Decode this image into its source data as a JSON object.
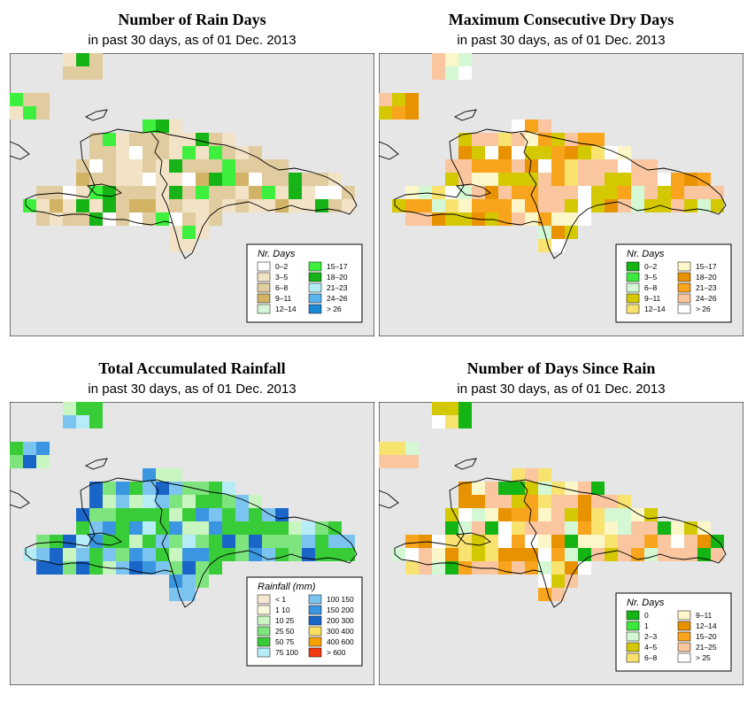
{
  "panels": [
    {
      "id": "rain-days",
      "title": "Number of Rain Days",
      "subtitle": "in past 30 days, as of  01 Dec. 2013",
      "legend": {
        "title": "Nr. Days",
        "items": [
          {
            "label": "0–2",
            "color": "#ffffff"
          },
          {
            "label": "3–5",
            "color": "#f3e3c6"
          },
          {
            "label": "6–8",
            "color": "#e0cc9e"
          },
          {
            "label": "9–11",
            "color": "#d2b264"
          },
          {
            "label": "12–14",
            "color": "#d6f7d6"
          },
          {
            "label": "15–17",
            "color": "#3ef03e"
          },
          {
            "label": "18–20",
            "color": "#16b416"
          },
          {
            "label": "21–23",
            "color": "#b4ecf6"
          },
          {
            "label": "24–26",
            "color": "#58b4ec"
          },
          {
            "label": "> 26",
            "color": "#1a8ad6"
          }
        ]
      }
    },
    {
      "id": "max-dry-days",
      "title": "Maximum Consecutive Dry Days",
      "subtitle": "in past 30 days, as of  01 Dec. 2013",
      "legend": {
        "title": "Nr. Days",
        "items": [
          {
            "label": "0–2",
            "color": "#14b414"
          },
          {
            "label": "3–5",
            "color": "#3ee83e"
          },
          {
            "label": "6–8",
            "color": "#d4f8d4"
          },
          {
            "label": "9–11",
            "color": "#d4c800"
          },
          {
            "label": "12–14",
            "color": "#f8e270"
          },
          {
            "label": "15–17",
            "color": "#fcf7c8"
          },
          {
            "label": "18–20",
            "color": "#e89200"
          },
          {
            "label": "21–23",
            "color": "#f8a41c"
          },
          {
            "label": "24–26",
            "color": "#f9c6a0"
          },
          {
            "label": "> 26",
            "color": "#ffffff"
          }
        ]
      }
    },
    {
      "id": "total-rainfall",
      "title": "Total Accumulated Rainfall",
      "subtitle": "in past 30 days, as of  01 Dec. 2013",
      "legend": {
        "title": "Rainfall (mm)",
        "items": [
          {
            "label": "< 1",
            "color": "#f6e8d0"
          },
          {
            "label": "1   10",
            "color": "#fbf7dc"
          },
          {
            "label": "10   25",
            "color": "#c9f5c0"
          },
          {
            "label": "25   50",
            "color": "#7ee47e"
          },
          {
            "label": "50   75",
            "color": "#38cc38"
          },
          {
            "label": "75  100",
            "color": "#b6ecf6"
          },
          {
            "label": "100  150",
            "color": "#7cc4f0"
          },
          {
            "label": "150  200",
            "color": "#3a96e0"
          },
          {
            "label": "200  300",
            "color": "#1a66c8"
          },
          {
            "label": "300  400",
            "color": "#f8e060"
          },
          {
            "label": "400  600",
            "color": "#f8a000"
          },
          {
            "label": "> 600",
            "color": "#f03a10"
          }
        ]
      }
    },
    {
      "id": "days-since-rain",
      "title": "Number of Days Since Rain",
      "subtitle": "in past 30 days, as of  01 Dec. 2013",
      "legend": {
        "title": "Nr. Days",
        "items": [
          {
            "label": "0",
            "color": "#14b414"
          },
          {
            "label": "1",
            "color": "#3ee83e"
          },
          {
            "label": "2–3",
            "color": "#d4f8d4"
          },
          {
            "label": "4–5",
            "color": "#d4c800"
          },
          {
            "label": "6–8",
            "color": "#f8e270"
          },
          {
            "label": "9–11",
            "color": "#fcf7c8"
          },
          {
            "label": "12–14",
            "color": "#e89200"
          },
          {
            "label": "15–20",
            "color": "#f8a41c"
          },
          {
            "label": "21–25",
            "color": "#f9c6a0"
          },
          {
            "label": "> 25",
            "color": "#ffffff"
          }
        ]
      }
    }
  ],
  "colors": {
    "ocean": "#e6e6e6",
    "coastline": "#000000"
  }
}
